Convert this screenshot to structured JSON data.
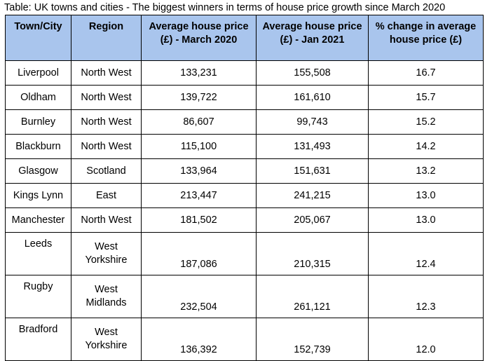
{
  "caption": "Table: UK towns and cities - The biggest winners in terms of house price growth since March 2020",
  "headers": [
    "Town/City",
    "Region",
    "Average house price (£) - March 2020",
    "Average house price (£) - Jan 2021",
    "% change in average house price (£)"
  ],
  "rows": [
    {
      "city": "Liverpool",
      "region": "North West",
      "mar2020": "133,231",
      "jan2021": "155,508",
      "change": "16.7"
    },
    {
      "city": "Oldham",
      "region": "North West",
      "mar2020": "139,722",
      "jan2021": "161,610",
      "change": "15.7"
    },
    {
      "city": "Burnley",
      "region": "North West",
      "mar2020": "86,607",
      "jan2021": "99,743",
      "change": "15.2"
    },
    {
      "city": "Blackburn",
      "region": "North West",
      "mar2020": "115,100",
      "jan2021": "131,493",
      "change": "14.2"
    },
    {
      "city": "Glasgow",
      "region": "Scotland",
      "mar2020": "133,964",
      "jan2021": "151,631",
      "change": "13.2"
    },
    {
      "city": "Kings Lynn",
      "region": "East",
      "mar2020": "213,447",
      "jan2021": "241,215",
      "change": "13.0"
    },
    {
      "city": "Manchester",
      "region": "North West",
      "mar2020": "181,502",
      "jan2021": "205,067",
      "change": "13.0"
    },
    {
      "city": "Leeds",
      "region_line1": "West",
      "region_line2": "Yorkshire",
      "mar2020": "187,086",
      "jan2021": "210,315",
      "change": "12.4"
    },
    {
      "city": "Rugby",
      "region_line1": "West",
      "region_line2": "Midlands",
      "mar2020": "232,504",
      "jan2021": "261,121",
      "change": "12.3"
    },
    {
      "city": "Bradford",
      "region_line1": "West",
      "region_line2": "Yorkshire",
      "mar2020": "136,392",
      "jan2021": "152,739",
      "change": "12.0"
    }
  ]
}
